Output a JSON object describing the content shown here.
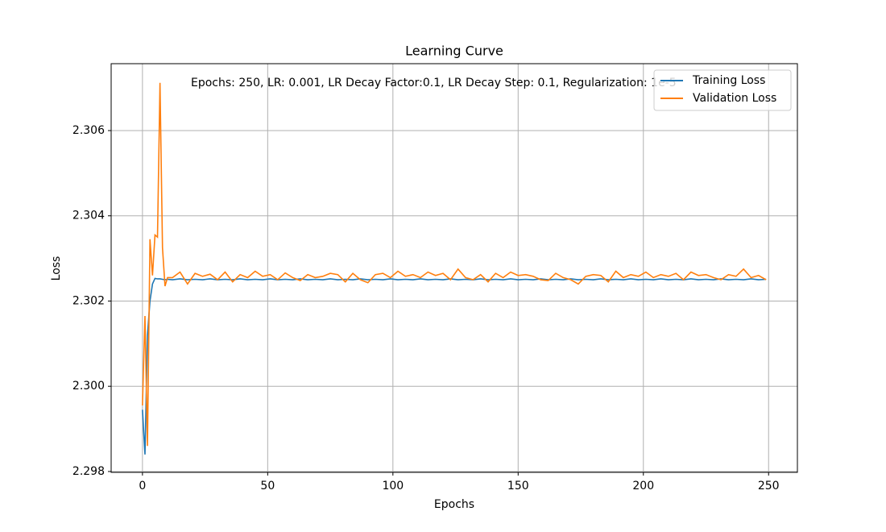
{
  "chart_data": {
    "type": "line",
    "title": "Learning Curve",
    "xlabel": "Epochs",
    "ylabel": "Loss",
    "annotation": "Epochs: 250, LR: 0.001, LR Decay Factor:0.1, LR Decay Step: 0.1, Regularization: 1e-5",
    "x": [
      0,
      1,
      2,
      3,
      4,
      5,
      6,
      7,
      8,
      9,
      10,
      12,
      15,
      18,
      21,
      24,
      27,
      30,
      33,
      36,
      39,
      42,
      45,
      48,
      51,
      54,
      57,
      60,
      63,
      66,
      69,
      72,
      75,
      78,
      81,
      84,
      87,
      90,
      93,
      96,
      99,
      102,
      105,
      108,
      111,
      114,
      117,
      120,
      123,
      126,
      129,
      132,
      135,
      138,
      141,
      144,
      147,
      150,
      153,
      156,
      159,
      162,
      165,
      168,
      171,
      174,
      177,
      180,
      183,
      186,
      189,
      192,
      195,
      198,
      201,
      204,
      207,
      210,
      213,
      216,
      219,
      222,
      225,
      228,
      231,
      234,
      237,
      240,
      243,
      246,
      249
    ],
    "series": [
      {
        "name": "Training Loss",
        "color": "#1f77b4",
        "values": [
          2.29945,
          2.2984,
          2.3012,
          2.302,
          2.3024,
          2.30253,
          2.30252,
          2.30252,
          2.30251,
          2.3025,
          2.30251,
          2.3025,
          2.30252,
          2.3025,
          2.30251,
          2.3025,
          2.30252,
          2.3025,
          2.30251,
          2.3025,
          2.30252,
          2.3025,
          2.30251,
          2.3025,
          2.30252,
          2.3025,
          2.30251,
          2.3025,
          2.30252,
          2.3025,
          2.30251,
          2.3025,
          2.30252,
          2.3025,
          2.30251,
          2.3025,
          2.30252,
          2.3025,
          2.30251,
          2.3025,
          2.30252,
          2.3025,
          2.30251,
          2.3025,
          2.30252,
          2.3025,
          2.30251,
          2.3025,
          2.30252,
          2.3025,
          2.30251,
          2.3025,
          2.30252,
          2.3025,
          2.30251,
          2.3025,
          2.30252,
          2.3025,
          2.30251,
          2.3025,
          2.30252,
          2.3025,
          2.30251,
          2.3025,
          2.30252,
          2.3025,
          2.30251,
          2.3025,
          2.30252,
          2.3025,
          2.30251,
          2.3025,
          2.30252,
          2.3025,
          2.30251,
          2.3025,
          2.30252,
          2.3025,
          2.30251,
          2.3025,
          2.30252,
          2.3025,
          2.30251,
          2.3025,
          2.30252,
          2.3025,
          2.30251,
          2.3025,
          2.30252,
          2.3025,
          2.30251
        ]
      },
      {
        "name": "Validation Loss",
        "color": "#ff7f0e",
        "values": [
          2.29955,
          2.30165,
          2.2986,
          2.30345,
          2.3026,
          2.30355,
          2.3035,
          2.30712,
          2.30325,
          2.30235,
          2.30255,
          2.30255,
          2.30268,
          2.3024,
          2.30265,
          2.30258,
          2.30263,
          2.3025,
          2.30268,
          2.30245,
          2.30262,
          2.30255,
          2.3027,
          2.30258,
          2.30262,
          2.3025,
          2.30266,
          2.30255,
          2.30248,
          2.30262,
          2.30255,
          2.30258,
          2.30265,
          2.30262,
          2.30245,
          2.30265,
          2.3025,
          2.30243,
          2.30262,
          2.30265,
          2.30255,
          2.3027,
          2.30258,
          2.30262,
          2.30255,
          2.30268,
          2.3026,
          2.30265,
          2.3025,
          2.30275,
          2.30255,
          2.3025,
          2.30262,
          2.30245,
          2.30265,
          2.30255,
          2.30268,
          2.3026,
          2.30262,
          2.30258,
          2.3025,
          2.30248,
          2.30265,
          2.30255,
          2.3025,
          2.3024,
          2.30258,
          2.30262,
          2.3026,
          2.30245,
          2.3027,
          2.30255,
          2.30262,
          2.30258,
          2.30268,
          2.30255,
          2.30262,
          2.30258,
          2.30265,
          2.3025,
          2.30268,
          2.3026,
          2.30262,
          2.30255,
          2.3025,
          2.30262,
          2.30258,
          2.30275,
          2.30255,
          2.3026,
          2.3025
        ]
      }
    ],
    "xlim": [
      -12.5,
      261.5
    ],
    "ylim": [
      2.29798,
      2.30757
    ],
    "xticks": [
      0,
      50,
      100,
      150,
      200,
      250
    ],
    "yticks": [
      2.298,
      {
        "value": 2.3,
        "label": "2.300"
      },
      2.302,
      2.304,
      2.306
    ],
    "grid": true,
    "legend": "upper right"
  }
}
